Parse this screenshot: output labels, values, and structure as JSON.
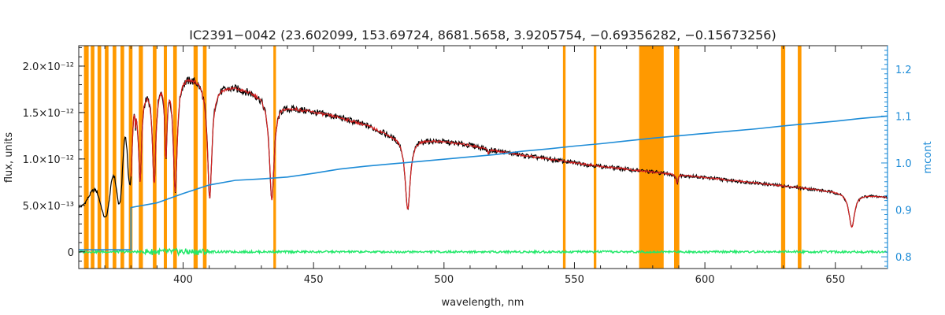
{
  "chart_data": {
    "type": "line",
    "title": "IC2391−0042    (23.602099, 153.69724, 8681.5658, 3.9205754, −0.69356282, −0.15673256)",
    "xlabel": "wavelength, nm",
    "ylabel": "flux, units",
    "ylabel_right": "mcont",
    "xlim": [
      360,
      670
    ],
    "ylim": [
      -1.8e-13,
      2.22e-12
    ],
    "ylim_right": [
      0.775,
      1.25
    ],
    "x_ticks": [
      400,
      450,
      500,
      550,
      600,
      650
    ],
    "x_tick_labels": [
      "400",
      "450",
      "500",
      "550",
      "600",
      "650"
    ],
    "y_ticks": [
      0,
      5e-13,
      1e-12,
      1.5e-12,
      2e-12
    ],
    "y_tick_labels": [
      "0",
      "5.0×10⁻¹³",
      "1.0×10⁻¹²",
      "1.5×10⁻¹²",
      "2.0×10⁻¹²"
    ],
    "y_right_ticks": [
      0.8,
      0.9,
      1.0,
      1.1,
      1.2
    ],
    "y_right_tick_labels": [
      "0.8",
      "0.9",
      "1.0",
      "1.1",
      "1.2"
    ],
    "grid": false,
    "legend": "none",
    "masked_regions": [
      [
        362.0,
        363.8
      ],
      [
        364.6,
        366.0
      ],
      [
        367.2,
        368.6
      ],
      [
        370.0,
        371.4
      ],
      [
        373.0,
        374.4
      ],
      [
        376.0,
        377.4
      ],
      [
        379.2,
        380.6
      ],
      [
        383.0,
        384.6
      ],
      [
        388.4,
        389.8
      ],
      [
        392.6,
        393.8
      ],
      [
        396.2,
        397.6
      ],
      [
        404.0,
        405.6
      ],
      [
        407.6,
        409.0
      ],
      [
        434.6,
        435.6
      ],
      [
        545.6,
        546.6
      ],
      [
        557.4,
        558.4
      ],
      [
        574.8,
        584.2
      ],
      [
        588.2,
        590.2
      ],
      [
        629.2,
        630.8
      ],
      [
        635.6,
        637.0
      ]
    ],
    "continuum_model": [
      [
        380,
        0.905
      ],
      [
        390,
        0.915
      ],
      [
        400,
        0.935
      ],
      [
        410,
        0.953
      ],
      [
        420,
        0.963
      ],
      [
        430,
        0.966
      ],
      [
        440,
        0.97
      ],
      [
        450,
        0.978
      ],
      [
        460,
        0.987
      ],
      [
        470,
        0.993
      ],
      [
        480,
        0.998
      ],
      [
        490,
        1.003
      ],
      [
        500,
        1.008
      ],
      [
        510,
        1.013
      ],
      [
        520,
        1.018
      ],
      [
        530,
        1.025
      ],
      [
        540,
        1.03
      ],
      [
        550,
        1.036
      ],
      [
        560,
        1.041
      ],
      [
        570,
        1.047
      ],
      [
        580,
        1.053
      ],
      [
        590,
        1.058
      ],
      [
        600,
        1.063
      ],
      [
        610,
        1.068
      ],
      [
        620,
        1.073
      ],
      [
        630,
        1.079
      ],
      [
        640,
        1.084
      ],
      [
        650,
        1.089
      ],
      [
        660,
        1.095
      ],
      [
        670,
        1.1
      ]
    ],
    "continuum_model_start": [
      [
        360,
        0.815
      ],
      [
        380,
        0.815
      ]
    ],
    "pseudo_continuum": [
      [
        360,
        6.4e-13
      ],
      [
        368,
        6.8e-13
      ],
      [
        374,
        8.5e-13
      ],
      [
        380,
        1.5e-12
      ],
      [
        385,
        1.78e-12
      ],
      [
        390,
        1.87e-12
      ],
      [
        395,
        1.92e-12
      ],
      [
        400,
        1.92e-12
      ],
      [
        405,
        1.89e-12
      ],
      [
        410,
        1.8e-12
      ],
      [
        420,
        1.78e-12
      ],
      [
        430,
        1.7e-12
      ],
      [
        440,
        1.57e-12
      ],
      [
        450,
        1.51e-12
      ],
      [
        460,
        1.45e-12
      ],
      [
        470,
        1.37e-12
      ],
      [
        480,
        1.26e-12
      ],
      [
        490,
        1.22e-12
      ],
      [
        500,
        1.19e-12
      ],
      [
        510,
        1.15e-12
      ],
      [
        520,
        1.09e-12
      ],
      [
        530,
        1.04e-12
      ],
      [
        540,
        1e-12
      ],
      [
        550,
        9.6e-13
      ],
      [
        560,
        9.2e-13
      ],
      [
        570,
        8.9e-13
      ],
      [
        580,
        8.6e-13
      ],
      [
        590,
        8.3e-13
      ],
      [
        600,
        8e-13
      ],
      [
        610,
        7.7e-13
      ],
      [
        620,
        7.4e-13
      ],
      [
        630,
        7.1e-13
      ],
      [
        640,
        6.8e-13
      ],
      [
        650,
        6.5e-13
      ],
      [
        660,
        6.2e-13
      ],
      [
        670,
        5.9e-13
      ]
    ],
    "absorption_lines": [
      {
        "center": 486.1,
        "depth": 0.63,
        "width": 1.2
      },
      {
        "center": 434.0,
        "depth": 0.66,
        "width": 1.1
      },
      {
        "center": 410.2,
        "depth": 0.68,
        "width": 1.0
      },
      {
        "center": 397.0,
        "depth": 0.66,
        "width": 0.9
      },
      {
        "center": 393.4,
        "depth": 0.45,
        "width": 0.5
      },
      {
        "center": 388.9,
        "depth": 0.6,
        "width": 0.8
      },
      {
        "center": 383.5,
        "depth": 0.55,
        "width": 0.7
      },
      {
        "center": 656.3,
        "depth": 0.58,
        "width": 1.3
      },
      {
        "center": 589.3,
        "depth": 0.12,
        "width": 0.4
      },
      {
        "center": 517.0,
        "depth": 0.05,
        "width": 0.3
      }
    ],
    "series": [
      {
        "id": "observed",
        "color": "#000000",
        "axis": "left"
      },
      {
        "id": "model",
        "color": "#d42020",
        "axis": "left"
      },
      {
        "id": "residuals",
        "color": "#22e86a",
        "axis": "left"
      },
      {
        "id": "continuum",
        "color": "#1e8cd7",
        "axis": "right"
      }
    ],
    "colors": {
      "mask": "#ff9900",
      "axis": "#222222",
      "right_axis": "#1e8cd7"
    }
  }
}
